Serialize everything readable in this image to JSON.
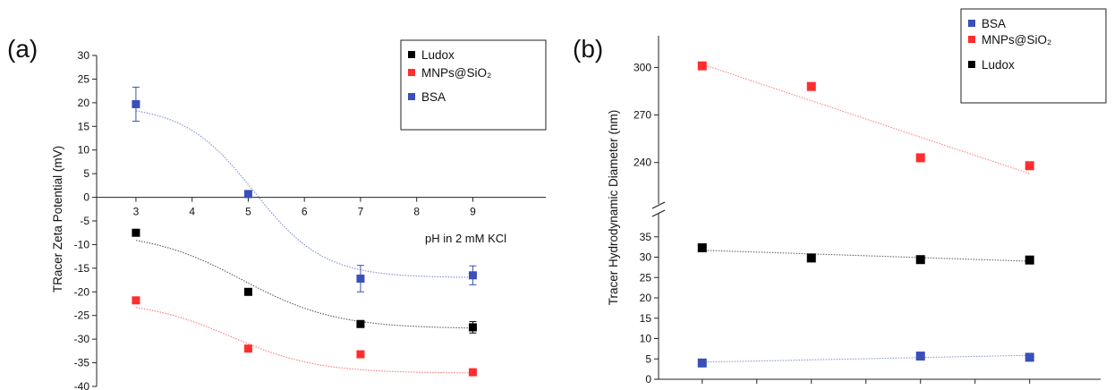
{
  "chart_data": [
    {
      "type": "scatter",
      "panel_label": "(a)",
      "title": "",
      "xlabel": "pH in 2 mM KCl",
      "ylabel": "TRacer Zeta Potential (mV)",
      "xlim": [
        2.3,
        10.3
      ],
      "ylim": [
        -40,
        30
      ],
      "x_ticks": [
        3,
        4,
        5,
        6,
        7,
        8,
        9
      ],
      "y_ticks": [
        30,
        25,
        20,
        15,
        10,
        5,
        0,
        -5,
        -10,
        -15,
        -20,
        -25,
        -30,
        -35,
        -40
      ],
      "legend_position": "top-right",
      "grid": false,
      "series": [
        {
          "name": "Ludox",
          "color": "#000000",
          "x": [
            3,
            5,
            7,
            9
          ],
          "y": [
            -7.5,
            -20,
            -26.8,
            -27.5
          ],
          "yerr": [
            0,
            0,
            0,
            1.2
          ],
          "fit": "sigmoid",
          "fit_params": {
            "top": -7.2,
            "bottom": -27.8,
            "x0": 4.9,
            "k": 1.2
          }
        },
        {
          "name": "MNPs@SiO₂",
          "color": "#ff2d2d",
          "x": [
            3,
            5,
            7,
            9
          ],
          "y": [
            -21.8,
            -32,
            -33.2,
            -37
          ],
          "yerr": [
            0,
            0,
            0,
            0
          ],
          "fit": "sigmoid",
          "fit_params": {
            "top": -21.8,
            "bottom": -37.2,
            "x0": 4.7,
            "k": 1.3
          }
        },
        {
          "name": "BSA",
          "color": "#3a4fb8",
          "x": [
            3,
            5,
            7,
            9
          ],
          "y": [
            19.7,
            0.7,
            -17.2,
            -16.5
          ],
          "yerr": [
            3.6,
            0,
            2.8,
            2
          ],
          "fit": "sigmoid",
          "fit_params": {
            "top": 19.5,
            "bottom": -17,
            "x0": 5.1,
            "k": 1.6
          }
        }
      ],
      "colors": {
        "Ludox": "#000000",
        "MNPs@SiO₂": "#ff2d2d",
        "BSA": "#3a4fb8"
      }
    },
    {
      "type": "scatter",
      "panel_label": "(b)",
      "title": "",
      "xlabel": "",
      "ylabel": "Tracer Hydrodynamic Diameter (nm)",
      "xlim": [
        2.2,
        10.3
      ],
      "ylim_lower": [
        0,
        40
      ],
      "ylim_upper": [
        215,
        320
      ],
      "axis_break": true,
      "x_ticks": [
        3,
        4,
        5,
        6,
        7,
        8,
        9
      ],
      "y_ticks_lower": [
        0,
        5,
        10,
        15,
        20,
        25,
        30,
        35
      ],
      "y_ticks_upper": [
        240,
        270,
        300
      ],
      "legend_position": "top-right",
      "grid": false,
      "series": [
        {
          "name": "BSA",
          "color": "#3a4fb8",
          "x": [
            3,
            7,
            9
          ],
          "y": [
            4,
            5.7,
            5.4
          ],
          "fit": "linear",
          "fit_line": [
            [
              3,
              4.2
            ],
            [
              9,
              5.9
            ]
          ]
        },
        {
          "name": "MNPs@SiO₂",
          "color": "#ff2d2d",
          "x": [
            3,
            5,
            7,
            9
          ],
          "y": [
            301,
            288,
            243,
            238
          ],
          "fit": "linear",
          "fit_line": [
            [
              3,
              302
            ],
            [
              9,
              233
            ]
          ]
        },
        {
          "name": "Ludox",
          "color": "#000000",
          "x": [
            3,
            5,
            7,
            9
          ],
          "y": [
            32.3,
            29.8,
            29.4,
            29.3
          ],
          "fit": "linear",
          "fit_line": [
            [
              3,
              31.7
            ],
            [
              9,
              29
            ]
          ]
        }
      ],
      "colors": {
        "BSA": "#3a4fb8",
        "MNPs@SiO₂": "#ff2d2d",
        "Ludox": "#000000"
      }
    }
  ]
}
